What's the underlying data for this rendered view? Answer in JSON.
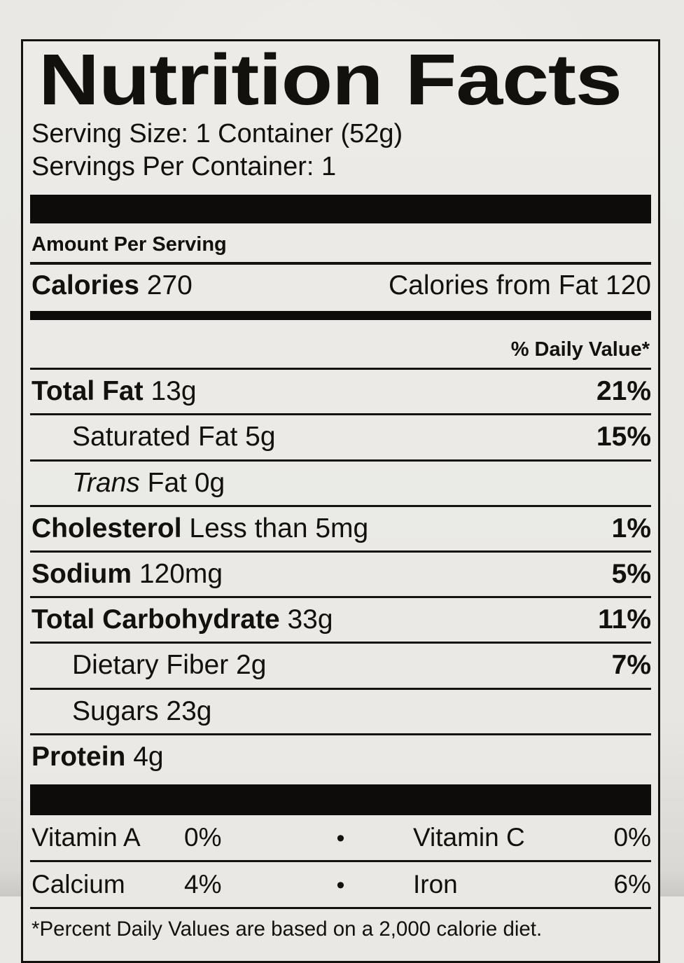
{
  "label": {
    "title": "Nutrition Facts",
    "serving_size": "Serving Size: 1 Container (52g)",
    "servings_per_container": "Servings Per Container: 1",
    "amount_per_serving": "Amount Per Serving",
    "calories": {
      "label": "Calories",
      "value": "270",
      "from_fat_label": "Calories from Fat",
      "from_fat_value": "120"
    },
    "daily_value_header": "% Daily Value*",
    "nutrients": [
      {
        "name_bold": "Total Fat",
        "name_italic": "",
        "name_regular": " 13g",
        "dv": "21%"
      },
      {
        "name_bold": "",
        "name_italic": "",
        "name_regular": "Saturated Fat 5g",
        "dv": "15%"
      },
      {
        "name_bold": "",
        "name_italic": "Trans",
        "name_regular": " Fat 0g",
        "dv": ""
      },
      {
        "name_bold": "Cholesterol",
        "name_italic": "",
        "name_regular": " Less than 5mg",
        "dv": "1%"
      },
      {
        "name_bold": "Sodium",
        "name_italic": "",
        "name_regular": " 120mg",
        "dv": "5%"
      },
      {
        "name_bold": "Total Carbohydrate",
        "name_italic": "",
        "name_regular": " 33g",
        "dv": "11%"
      },
      {
        "name_bold": "",
        "name_italic": "",
        "name_regular": "Dietary Fiber 2g",
        "dv": "7%"
      },
      {
        "name_bold": "",
        "name_italic": "",
        "name_regular": "Sugars 23g",
        "dv": ""
      },
      {
        "name_bold": "Protein",
        "name_italic": "",
        "name_regular": " 4g",
        "dv": ""
      }
    ],
    "bullet": "•",
    "micronutrients": [
      {
        "left_name": "Vitamin A",
        "left_value": "0%",
        "right_name": "Vitamin C",
        "right_value": "0%"
      },
      {
        "left_name": "Calcium",
        "left_value": "4%",
        "right_name": "Iron",
        "right_value": "6%"
      }
    ],
    "footnote": "*Percent Daily Values are based on a 2,000 calorie diet.",
    "colors": {
      "ink": "#15130f",
      "paper": "#eae9e5"
    }
  }
}
